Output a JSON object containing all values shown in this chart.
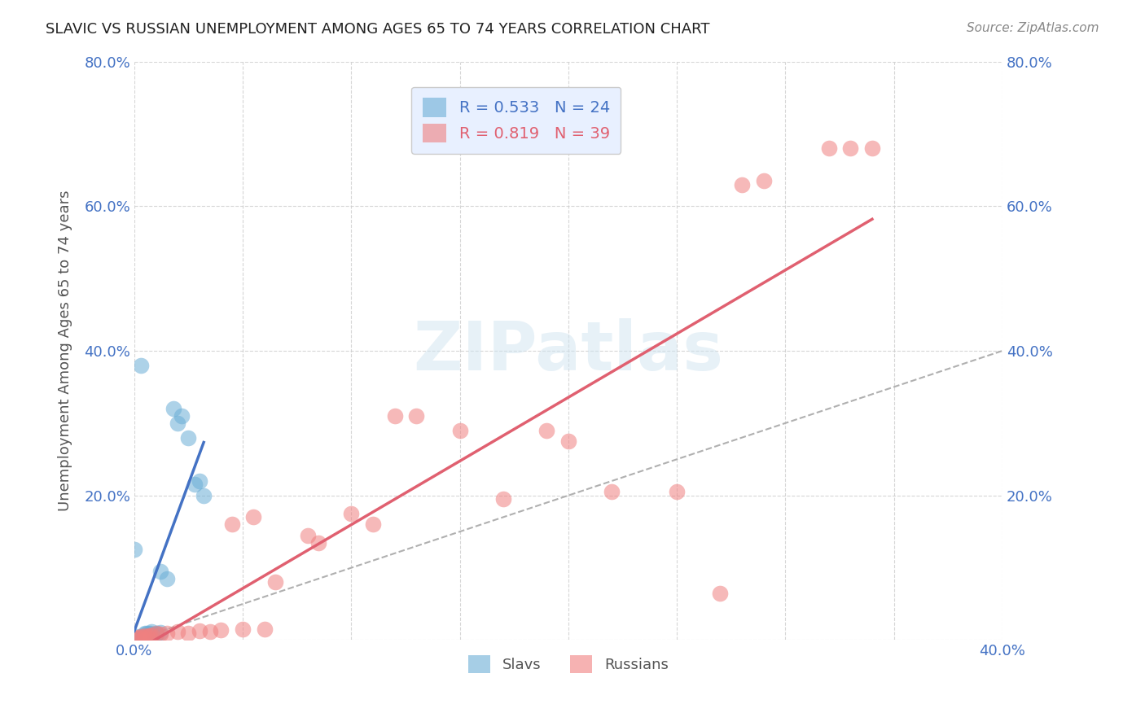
{
  "title": "SLAVIC VS RUSSIAN UNEMPLOYMENT AMONG AGES 65 TO 74 YEARS CORRELATION CHART",
  "source": "Source: ZipAtlas.com",
  "ylabel": "Unemployment Among Ages 65 to 74 years",
  "xlabel": "",
  "background_color": "#ffffff",
  "watermark": "ZIPatlas",
  "xlim": [
    0.0,
    0.4
  ],
  "ylim": [
    0.0,
    0.8
  ],
  "xticks": [
    0.0,
    0.05,
    0.1,
    0.15,
    0.2,
    0.25,
    0.3,
    0.35,
    0.4
  ],
  "yticks": [
    0.0,
    0.2,
    0.4,
    0.6,
    0.8
  ],
  "xtick_labels": [
    "0.0%",
    "",
    "",
    "",
    "",
    "",
    "",
    "",
    "40.0%"
  ],
  "ytick_labels": [
    "",
    "20.0%",
    "40.0%",
    "60.0%",
    "80.0%"
  ],
  "slavs_color": "#6baed6",
  "russians_color": "#f08080",
  "slavs_R": 0.533,
  "slavs_N": 24,
  "russians_R": 0.819,
  "russians_N": 39,
  "slavs_scatter": [
    [
      0.001,
      0.005
    ],
    [
      0.002,
      0.003
    ],
    [
      0.003,
      0.004
    ],
    [
      0.004,
      0.005
    ],
    [
      0.005,
      0.01
    ],
    [
      0.005,
      0.008
    ],
    [
      0.008,
      0.008
    ],
    [
      0.01,
      0.008
    ],
    [
      0.01,
      0.01
    ],
    [
      0.012,
      0.011
    ],
    [
      0.015,
      0.085
    ],
    [
      0.012,
      0.095
    ],
    [
      0.02,
      0.3
    ],
    [
      0.018,
      0.32
    ],
    [
      0.022,
      0.31
    ],
    [
      0.025,
      0.28
    ],
    [
      0.03,
      0.22
    ],
    [
      0.028,
      0.215
    ],
    [
      0.0,
      0.125
    ],
    [
      0.003,
      0.38
    ],
    [
      0.032,
      0.2
    ],
    [
      0.008,
      0.012
    ],
    [
      0.006,
      0.01
    ],
    [
      0.007,
      0.009
    ]
  ],
  "russians_scatter": [
    [
      0.001,
      0.003
    ],
    [
      0.002,
      0.004
    ],
    [
      0.003,
      0.005
    ],
    [
      0.004,
      0.004
    ],
    [
      0.005,
      0.006
    ],
    [
      0.006,
      0.005
    ],
    [
      0.007,
      0.006
    ],
    [
      0.008,
      0.007
    ],
    [
      0.01,
      0.009
    ],
    [
      0.012,
      0.008
    ],
    [
      0.015,
      0.01
    ],
    [
      0.02,
      0.012
    ],
    [
      0.025,
      0.01
    ],
    [
      0.03,
      0.013
    ],
    [
      0.035,
      0.012
    ],
    [
      0.04,
      0.014
    ],
    [
      0.05,
      0.015
    ],
    [
      0.06,
      0.015
    ],
    [
      0.045,
      0.16
    ],
    [
      0.055,
      0.17
    ],
    [
      0.08,
      0.145
    ],
    [
      0.085,
      0.135
    ],
    [
      0.1,
      0.175
    ],
    [
      0.11,
      0.16
    ],
    [
      0.12,
      0.31
    ],
    [
      0.13,
      0.31
    ],
    [
      0.15,
      0.29
    ],
    [
      0.17,
      0.195
    ],
    [
      0.19,
      0.29
    ],
    [
      0.2,
      0.275
    ],
    [
      0.22,
      0.205
    ],
    [
      0.25,
      0.205
    ],
    [
      0.27,
      0.065
    ],
    [
      0.32,
      0.68
    ],
    [
      0.33,
      0.68
    ],
    [
      0.34,
      0.68
    ],
    [
      0.28,
      0.63
    ],
    [
      0.29,
      0.635
    ],
    [
      0.065,
      0.08
    ]
  ],
  "slavs_line_color": "#4472c4",
  "russians_line_color": "#e06070",
  "diagonal_color": "#b0b0b0",
  "legend_box_color": "#e8f0ff",
  "legend_border_color": "#cccccc"
}
